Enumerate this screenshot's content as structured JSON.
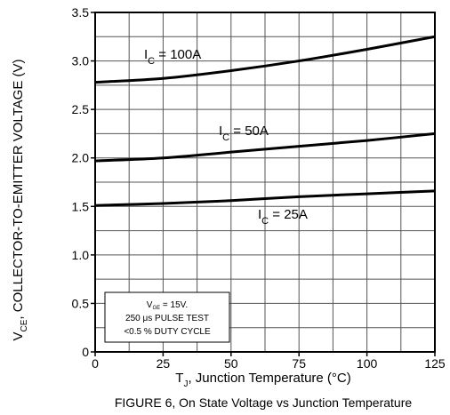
{
  "chart_data": {
    "type": "line",
    "xlabel": {
      "main": "T",
      "sub": "J",
      "rest": ", Junction Temperature (°C)"
    },
    "ylabel": {
      "main": "V",
      "sub": "CE",
      "rest": ", COLLECTOR-TO-EMITTER VOLTAGE (V)"
    },
    "xlim": [
      0,
      125
    ],
    "ylim": [
      0,
      3.5
    ],
    "x_ticks": [
      "0",
      "25",
      "50",
      "75",
      "100",
      "125"
    ],
    "y_ticks": [
      "0",
      "0.5",
      "1.0",
      "1.5",
      "2.0",
      "2.5",
      "3.0",
      "3.5"
    ],
    "grid": true,
    "caption": "FIGURE 6, On State Voltage vs Junction Temperature",
    "series": [
      {
        "name": "I_C = 100A",
        "label": {
          "main": "I",
          "sub": "C",
          "rest": " = 100A"
        },
        "x": [
          0,
          25,
          50,
          75,
          100,
          125
        ],
        "y": [
          2.78,
          2.82,
          2.9,
          3.0,
          3.12,
          3.25
        ]
      },
      {
        "name": "I_C = 50A",
        "label": {
          "main": "I",
          "sub": "C",
          "rest": " = 50A"
        },
        "x": [
          0,
          25,
          50,
          75,
          100,
          125
        ],
        "y": [
          1.97,
          2.0,
          2.06,
          2.12,
          2.18,
          2.25
        ]
      },
      {
        "name": "I_C = 25A",
        "label": {
          "main": "I",
          "sub": "C",
          "rest": " = 25A"
        },
        "x": [
          0,
          25,
          50,
          75,
          100,
          125
        ],
        "y": [
          1.51,
          1.53,
          1.56,
          1.6,
          1.63,
          1.66
        ]
      }
    ],
    "conditions": {
      "line1": {
        "main": "V",
        "sub": "GE",
        "rest": " = 15V."
      },
      "line2": "250 μs PULSE TEST",
      "line3": "<0.5 % DUTY CYCLE"
    }
  }
}
